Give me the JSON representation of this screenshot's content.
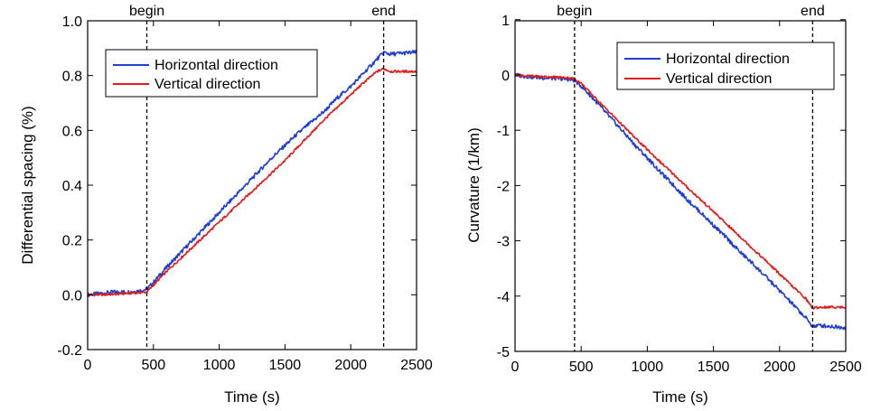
{
  "figure": {
    "background": "#ffffff",
    "colors": {
      "horizontal": "#1f3fd0",
      "vertical": "#e01b1b",
      "axis": "#000000"
    }
  },
  "chart_data": [
    {
      "type": "line",
      "xlabel": "Time (s)",
      "ylabel": "Differential spacing (%)",
      "xlim": [
        0,
        2500
      ],
      "ylim": [
        -0.2,
        1.0
      ],
      "xticks": [
        0,
        500,
        1000,
        1500,
        2000,
        2500
      ],
      "xtick_labels": [
        "0",
        "500",
        "1000",
        "1500",
        "2000",
        "2500"
      ],
      "yticks": [
        -0.2,
        0,
        0.2,
        0.4,
        0.6,
        0.8,
        1.0
      ],
      "ytick_labels": [
        "-0.2",
        "0.0",
        "0.2",
        "0.4",
        "0.6",
        "0.8",
        "1.0"
      ],
      "grid": false,
      "legend_position": "upper-left",
      "markers": [
        {
          "x": 450,
          "label": "begin",
          "style": "dashed"
        },
        {
          "x": 2250,
          "label": "end",
          "style": "dashed"
        }
      ],
      "series": [
        {
          "name": "Horizontal direction",
          "color": "#1f3fd0",
          "x": [
            0,
            100,
            200,
            300,
            400,
            450,
            500,
            600,
            700,
            800,
            900,
            1000,
            1100,
            1200,
            1300,
            1400,
            1500,
            1600,
            1700,
            1800,
            1900,
            2000,
            2100,
            2200,
            2250,
            2300,
            2400,
            2500
          ],
          "y": [
            0.0,
            0.005,
            0.01,
            0.01,
            0.015,
            0.02,
            0.045,
            0.1,
            0.15,
            0.2,
            0.25,
            0.3,
            0.35,
            0.4,
            0.45,
            0.5,
            0.545,
            0.59,
            0.63,
            0.67,
            0.72,
            0.76,
            0.81,
            0.86,
            0.885,
            0.878,
            0.882,
            0.885
          ]
        },
        {
          "name": "Vertical direction",
          "color": "#e01b1b",
          "x": [
            0,
            100,
            200,
            300,
            400,
            450,
            500,
            600,
            700,
            800,
            900,
            1000,
            1100,
            1200,
            1300,
            1400,
            1500,
            1600,
            1700,
            1800,
            1900,
            2000,
            2100,
            2200,
            2250,
            2300,
            2400,
            2500
          ],
          "y": [
            0.0,
            0.0,
            0.002,
            0.005,
            0.008,
            0.01,
            0.035,
            0.085,
            0.13,
            0.175,
            0.22,
            0.265,
            0.31,
            0.355,
            0.4,
            0.445,
            0.49,
            0.54,
            0.59,
            0.64,
            0.685,
            0.73,
            0.775,
            0.815,
            0.825,
            0.815,
            0.815,
            0.815
          ]
        }
      ]
    },
    {
      "type": "line",
      "xlabel": "Time (s)",
      "ylabel": "Curvature (1/km)",
      "xlim": [
        0,
        2500
      ],
      "ylim": [
        -5,
        0.98
      ],
      "xticks": [
        0,
        500,
        1000,
        1500,
        2000,
        2500
      ],
      "xtick_labels": [
        "0",
        "500",
        "1000",
        "1500",
        "2000",
        "2500"
      ],
      "yticks": [
        -5,
        -4,
        -3,
        -2,
        -1,
        0,
        1
      ],
      "ytick_labels": [
        "-5",
        "-4",
        "-3",
        "-2",
        "-1",
        "0",
        "1"
      ],
      "grid": false,
      "legend_position": "upper-right",
      "markers": [
        {
          "x": 450,
          "label": "begin",
          "style": "dashed"
        },
        {
          "x": 2250,
          "label": "end",
          "style": "dashed"
        }
      ],
      "series": [
        {
          "name": "Horizontal direction",
          "color": "#1f3fd0",
          "x": [
            0,
            100,
            200,
            300,
            400,
            450,
            500,
            600,
            700,
            800,
            900,
            1000,
            1100,
            1200,
            1300,
            1400,
            1500,
            1600,
            1700,
            1800,
            1900,
            2000,
            2100,
            2200,
            2250,
            2300,
            2400,
            2500
          ],
          "y": [
            0.0,
            -0.03,
            -0.05,
            -0.06,
            -0.08,
            -0.1,
            -0.2,
            -0.45,
            -0.72,
            -0.98,
            -1.25,
            -1.5,
            -1.76,
            -2.0,
            -2.25,
            -2.48,
            -2.72,
            -2.95,
            -3.2,
            -3.42,
            -3.66,
            -3.9,
            -4.15,
            -4.4,
            -4.55,
            -4.53,
            -4.55,
            -4.57
          ]
        },
        {
          "name": "Vertical direction",
          "color": "#e01b1b",
          "x": [
            0,
            100,
            200,
            300,
            400,
            450,
            500,
            600,
            700,
            800,
            900,
            1000,
            1100,
            1200,
            1300,
            1400,
            1500,
            1600,
            1700,
            1800,
            1900,
            2000,
            2100,
            2200,
            2250,
            2300,
            2400,
            2500
          ],
          "y": [
            0.0,
            -0.02,
            -0.03,
            -0.04,
            -0.05,
            -0.07,
            -0.15,
            -0.4,
            -0.64,
            -0.88,
            -1.12,
            -1.35,
            -1.58,
            -1.8,
            -2.03,
            -2.25,
            -2.47,
            -2.7,
            -2.92,
            -3.15,
            -3.37,
            -3.6,
            -3.83,
            -4.05,
            -4.22,
            -4.2,
            -4.2,
            -4.2
          ]
        }
      ]
    }
  ]
}
